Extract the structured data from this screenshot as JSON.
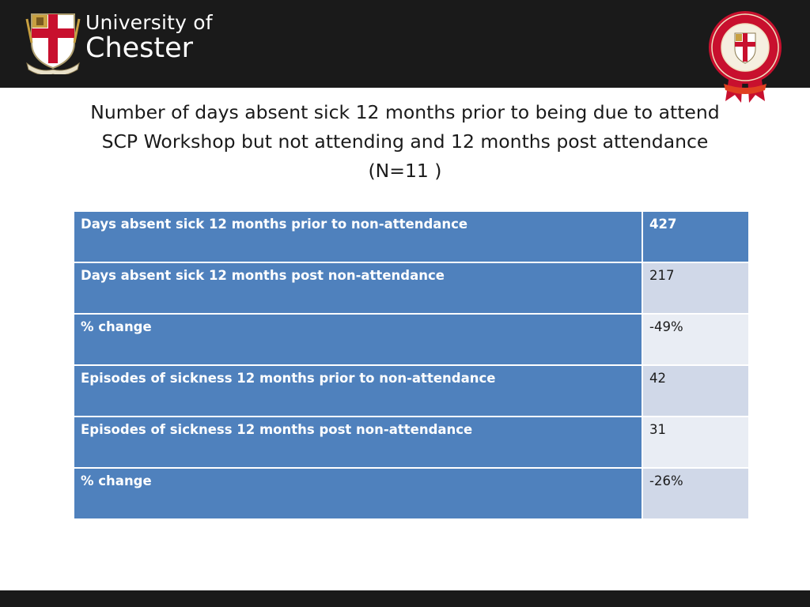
{
  "header": {
    "logo_line1": "University of",
    "logo_line2": "Chester",
    "crest_motto": "RESPICE PROSPICE",
    "seal_text": "UNIVERSITY OF CHESTER",
    "seal_year_left": "1839",
    "seal_year_right": "2014"
  },
  "title": {
    "line1": "Number of days absent sick 12 months prior to being due to attend",
    "line2": "SCP Workshop but not attending and 12 months post attendance",
    "line3": "(N=11 )"
  },
  "table": {
    "rows": [
      {
        "label": "Days absent sick 12 months prior to non-attendance",
        "value": "427"
      },
      {
        "label": "Days absent sick 12 months post non-attendance",
        "value": "217"
      },
      {
        "label": "% change",
        "value": "-49%"
      },
      {
        "label": "Episodes of sickness 12 months prior to non-attendance",
        "value": "42"
      },
      {
        "label": "Episodes of sickness 12 months post non-attendance",
        "value": "31"
      },
      {
        "label": "% change",
        "value": "-26%"
      }
    ]
  },
  "colors": {
    "header_bar": "#1a1a1a",
    "accent_blue": "#4f81bd",
    "cell_odd": "#d0d8e8",
    "cell_even": "#e9edf4",
    "crest_red": "#c8102e"
  }
}
